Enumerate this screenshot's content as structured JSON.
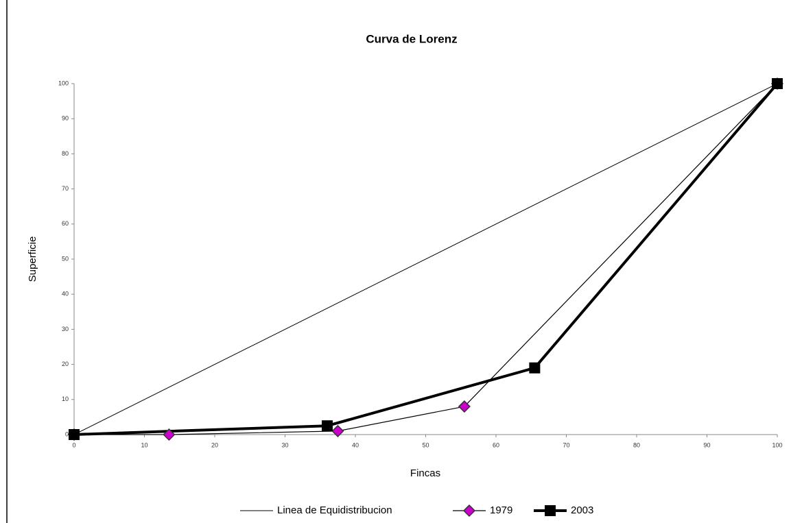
{
  "chart_data": {
    "type": "line",
    "title": "Curva de Lorenz",
    "x_label": "Fincas",
    "y_label": "Superficie",
    "xlim": [
      0,
      100
    ],
    "xticks": [
      0,
      10,
      20,
      30,
      40,
      50,
      60,
      70,
      80,
      90,
      100
    ],
    "ylim": [
      0,
      100
    ],
    "yticks": [
      0,
      10,
      20,
      30,
      40,
      50,
      60,
      70,
      80,
      90,
      100
    ],
    "grid": false,
    "legend": "bottom",
    "series": [
      {
        "name": "Linea de Equidistribucion",
        "color": "#000000",
        "marker": null,
        "x": [
          0,
          100
        ],
        "values": [
          0,
          100
        ]
      },
      {
        "name": "1979",
        "color": "#cc00cc",
        "marker": "diamond",
        "x": [
          0,
          13.5,
          37.5,
          55.5,
          100
        ],
        "values": [
          0,
          0,
          1,
          8,
          100
        ]
      },
      {
        "name": "2003",
        "color": "#000000",
        "marker": "square",
        "x": [
          0,
          36,
          65.5,
          100
        ],
        "values": [
          0,
          2.5,
          19,
          100
        ]
      }
    ]
  }
}
